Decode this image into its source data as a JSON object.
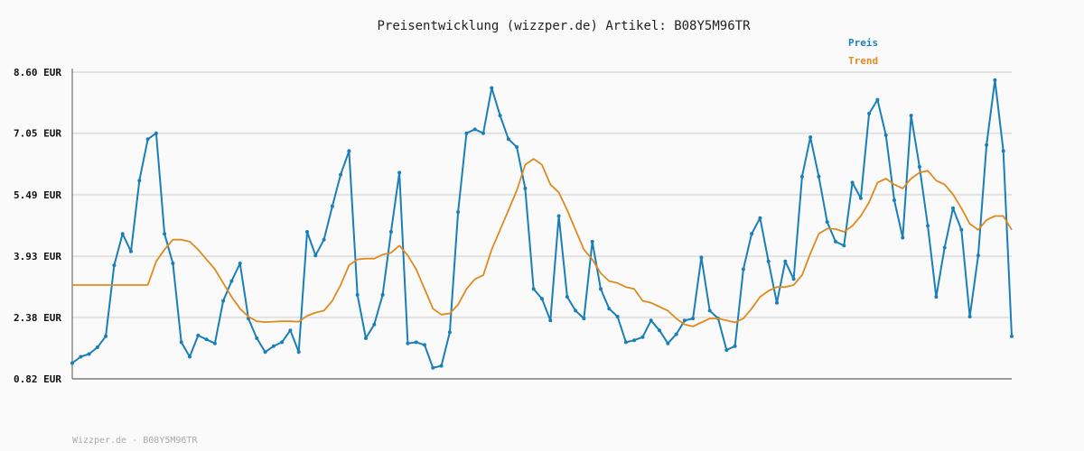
{
  "footer": "Wizzper.de - B08Y5M96TR",
  "colors": {
    "preis": "#1a7fb8",
    "trend": "#e08a1e",
    "grid": "#e2e2e2",
    "axis": "#555555"
  },
  "chart_data": {
    "type": "line",
    "title": "Preisentwicklung (wizzper.de) Artikel: B08Y5M96TR",
    "xlabel": "",
    "ylabel": "",
    "ylim": [
      0.82,
      8.6
    ],
    "yticks": [
      0.82,
      2.38,
      3.93,
      5.49,
      7.05,
      8.6
    ],
    "ytick_labels": [
      "0.82 EUR",
      "2.38 EUR",
      "3.93 EUR",
      "5.49 EUR",
      "7.05 EUR",
      "8.60 EUR"
    ],
    "legend_position": "top-right",
    "grid": true,
    "series": [
      {
        "name": "Preis",
        "values": [
          1.22,
          1.38,
          1.45,
          1.62,
          1.9,
          3.7,
          4.5,
          4.05,
          5.85,
          6.9,
          7.05,
          4.5,
          3.75,
          1.75,
          1.38,
          1.92,
          1.82,
          1.72,
          2.8,
          3.3,
          3.75,
          2.35,
          1.85,
          1.5,
          1.65,
          1.75,
          2.05,
          1.5,
          4.55,
          3.95,
          4.35,
          5.2,
          6.0,
          6.6,
          2.95,
          1.85,
          2.2,
          2.95,
          4.55,
          6.05,
          1.72,
          1.75,
          1.68,
          1.1,
          1.15,
          2.0,
          5.05,
          7.05,
          7.15,
          7.05,
          8.2,
          7.5,
          6.9,
          6.7,
          5.65,
          3.1,
          2.85,
          2.3,
          4.95,
          2.9,
          2.55,
          2.35,
          4.3,
          3.1,
          2.6,
          2.4,
          1.75,
          1.8,
          1.88,
          2.3,
          2.05,
          1.72,
          1.95,
          2.3,
          2.35,
          3.9,
          2.55,
          2.35,
          1.55,
          1.65,
          3.6,
          4.5,
          4.9,
          3.8,
          2.75,
          3.8,
          3.35,
          5.95,
          6.95,
          5.95,
          4.8,
          4.3,
          4.2,
          5.8,
          5.4,
          7.55,
          7.9,
          7.0,
          5.35,
          4.4,
          7.5,
          6.2,
          4.7,
          2.9,
          4.15,
          5.15,
          4.6,
          2.4,
          3.95,
          6.75,
          8.4,
          6.6,
          1.9
        ]
      },
      {
        "name": "Trend",
        "values": [
          3.2,
          3.2,
          3.2,
          3.2,
          3.2,
          3.2,
          3.2,
          3.2,
          3.2,
          3.2,
          3.8,
          4.1,
          4.35,
          4.35,
          4.3,
          4.1,
          3.85,
          3.6,
          3.25,
          2.9,
          2.6,
          2.4,
          2.28,
          2.26,
          2.27,
          2.28,
          2.28,
          2.27,
          2.42,
          2.5,
          2.55,
          2.8,
          3.2,
          3.7,
          3.85,
          3.87,
          3.87,
          3.97,
          4.02,
          4.2,
          3.95,
          3.6,
          3.1,
          2.6,
          2.45,
          2.48,
          2.7,
          3.1,
          3.35,
          3.45,
          4.1,
          4.6,
          5.1,
          5.6,
          6.25,
          6.4,
          6.25,
          5.75,
          5.55,
          5.1,
          4.6,
          4.1,
          3.85,
          3.5,
          3.3,
          3.25,
          3.15,
          3.1,
          2.8,
          2.75,
          2.65,
          2.55,
          2.35,
          2.2,
          2.15,
          2.25,
          2.35,
          2.35,
          2.3,
          2.25,
          2.35,
          2.6,
          2.9,
          3.05,
          3.15,
          3.15,
          3.2,
          3.45,
          4.0,
          4.5,
          4.63,
          4.62,
          4.55,
          4.7,
          4.95,
          5.3,
          5.8,
          5.9,
          5.75,
          5.65,
          5.9,
          6.05,
          6.1,
          5.85,
          5.75,
          5.5,
          5.15,
          4.75,
          4.6,
          4.85,
          4.95,
          4.95,
          4.6
        ]
      }
    ]
  }
}
